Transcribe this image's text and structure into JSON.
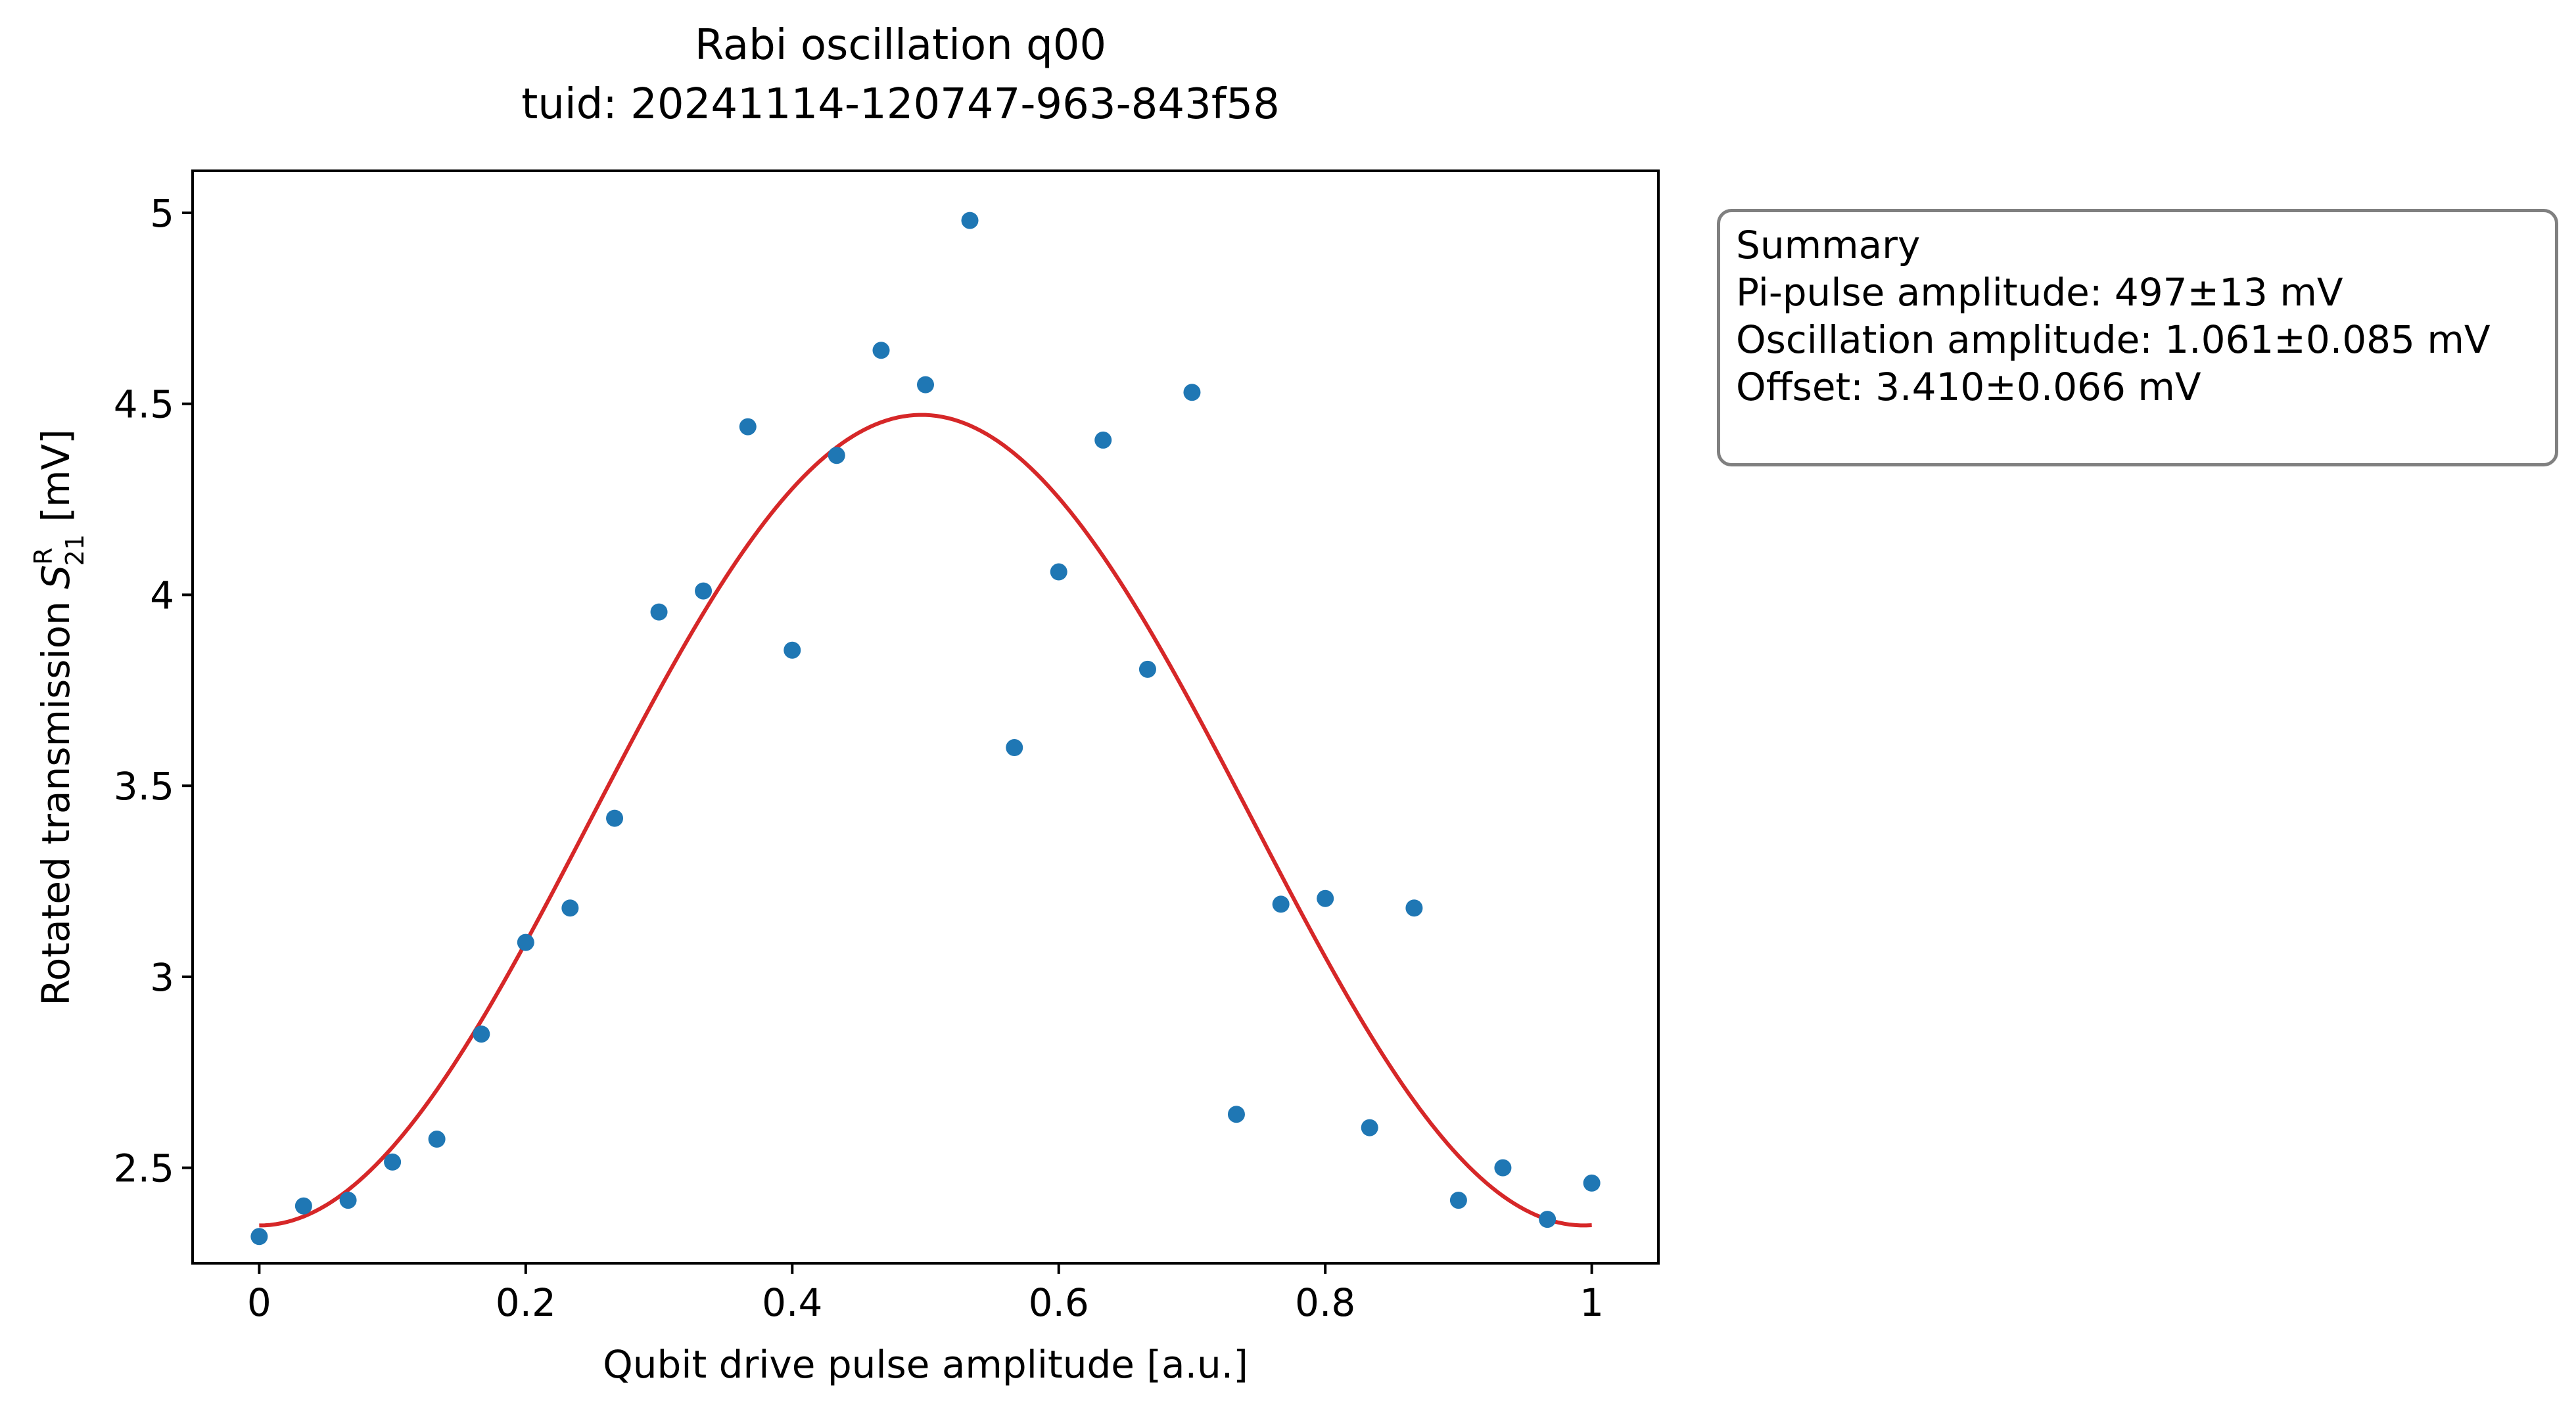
{
  "chart_data": {
    "type": "scatter",
    "title": "Rabi oscillation q00",
    "subtitle": "tuid: 20241114-120747-963-843f58",
    "xlabel": "Qubit drive pulse amplitude [a.u.]",
    "ylabel_prefix": "Rotated transmission ",
    "ylabel_symbol": "S",
    "ylabel_superscript": "R",
    "ylabel_subscript": "21",
    "ylabel_suffix": " [mV]",
    "xlim": [
      -0.05,
      1.05
    ],
    "ylim": [
      2.25,
      5.11
    ],
    "x_ticks": [
      {
        "value": 0,
        "label": "0"
      },
      {
        "value": 0.2,
        "label": "0.2"
      },
      {
        "value": 0.4,
        "label": "0.4"
      },
      {
        "value": 0.6,
        "label": "0.6"
      },
      {
        "value": 0.8,
        "label": "0.8"
      },
      {
        "value": 1,
        "label": "1"
      }
    ],
    "y_ticks": [
      {
        "value": 2.5,
        "label": "2.5"
      },
      {
        "value": 3,
        "label": "3"
      },
      {
        "value": 3.5,
        "label": "3.5"
      },
      {
        "value": 4,
        "label": "4"
      },
      {
        "value": 4.5,
        "label": "4.5"
      },
      {
        "value": 5,
        "label": "5"
      }
    ],
    "grid": false,
    "series": [
      {
        "kind": "scatter",
        "color": "#1f77b4",
        "x": [
          0,
          0.0333,
          0.0667,
          0.1,
          0.1333,
          0.1667,
          0.2,
          0.2333,
          0.2667,
          0.3,
          0.3333,
          0.3667,
          0.4,
          0.4333,
          0.4667,
          0.5,
          0.5333,
          0.5667,
          0.6,
          0.6333,
          0.6667,
          0.7,
          0.7333,
          0.7667,
          0.8,
          0.8333,
          0.8667,
          0.9,
          0.9333,
          0.9667,
          1
        ],
        "y": [
          2.32,
          2.4,
          2.415,
          2.515,
          2.575,
          2.85,
          3.09,
          3.18,
          3.415,
          3.955,
          4.01,
          4.44,
          3.855,
          4.365,
          4.64,
          4.55,
          4.98,
          3.6,
          4.06,
          4.405,
          3.805,
          4.53,
          2.64,
          3.19,
          3.205,
          2.605,
          3.18,
          2.415,
          2.5,
          2.365,
          2.46
        ]
      },
      {
        "kind": "fit",
        "color": "#d62728",
        "model": "offset - amplitude * cos(pi * x / pi_pulse_amplitude)",
        "offset": 3.41,
        "amplitude": 1.061,
        "pi_pulse_amplitude": 0.497
      }
    ]
  },
  "summary": {
    "heading": "Summary",
    "lines": [
      "Pi-pulse amplitude: 497±13 mV",
      "Oscillation amplitude: 1.061±0.085 mV",
      "Offset: 3.410±0.066 mV"
    ]
  }
}
